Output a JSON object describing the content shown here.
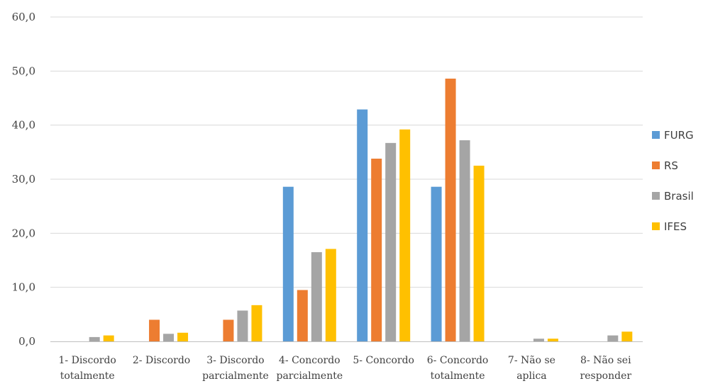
{
  "chart_data": {
    "type": "bar",
    "ylim": [
      0,
      60
    ],
    "yticks": [
      "0,0",
      "10,0",
      "20,0",
      "30,0",
      "40,0",
      "50,0",
      "60,0"
    ],
    "grid": true,
    "legend_position": "right",
    "categories": [
      [
        "1- Discordo",
        "totalmente"
      ],
      [
        "2- Discordo"
      ],
      [
        "3- Discordo",
        "parcialmente"
      ],
      [
        "4- Concordo",
        "parcialmente"
      ],
      [
        "5- Concordo"
      ],
      [
        "6- Concordo",
        "totalmente"
      ],
      [
        "7- Não se",
        "aplica"
      ],
      [
        "8- Não sei",
        "responder"
      ]
    ],
    "series": [
      {
        "name": "FURG",
        "color": "#5b9bd5",
        "values": [
          0,
          0,
          0,
          28.6,
          42.9,
          28.6,
          0,
          0
        ]
      },
      {
        "name": "RS",
        "color": "#ed7d31",
        "values": [
          0,
          4.0,
          4.0,
          9.5,
          33.8,
          48.6,
          0,
          0
        ]
      },
      {
        "name": "Brasil",
        "color": "#a5a5a5",
        "values": [
          0.8,
          1.4,
          5.7,
          16.5,
          36.7,
          37.2,
          0.5,
          1.1
        ]
      },
      {
        "name": "IFES",
        "color": "#ffc000",
        "values": [
          1.1,
          1.6,
          6.7,
          17.1,
          39.2,
          32.5,
          0.5,
          1.8
        ]
      }
    ]
  }
}
